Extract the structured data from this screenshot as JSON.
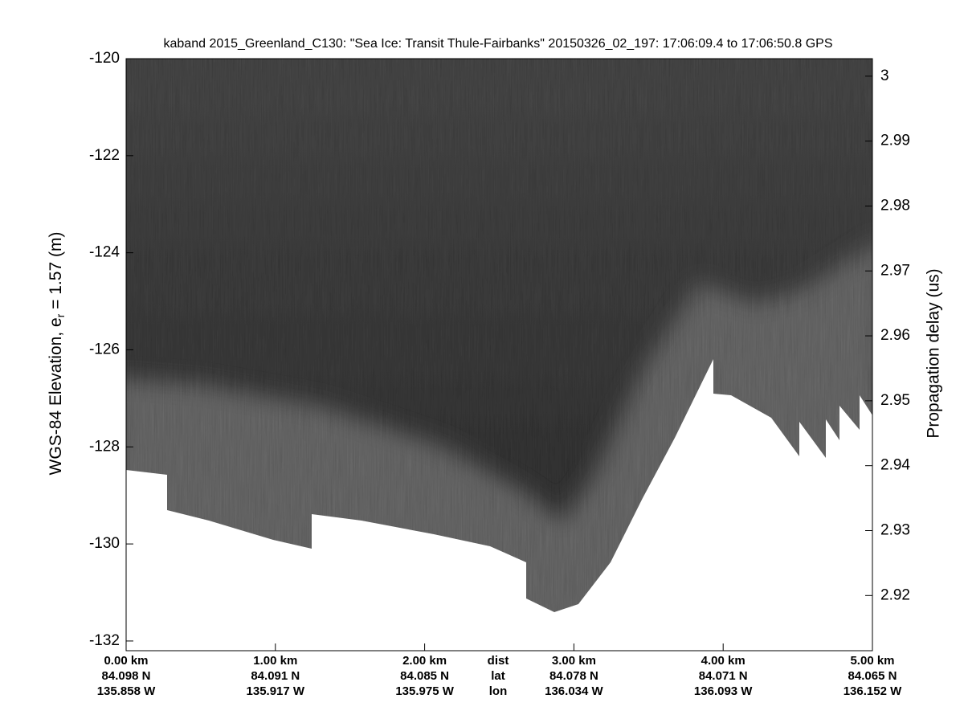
{
  "chart_data": {
    "type": "echogram",
    "title": "kaband 2015_Greenland_C130: \"Sea Ice: Transit Thule-Fairbanks\"  20150326_02_197: 17:06:09.4 to 17:06:50.8 GPS",
    "ylabel": [
      "WGS-84 Elevation, e",
      "r",
      " = 1.57 (m)"
    ],
    "y2label": "Propagation delay (us)",
    "xlim": [
      0,
      5
    ],
    "xticks": [
      {
        "value": 0,
        "label": "0.00 km"
      },
      {
        "value": 1,
        "label": "1.00 km"
      },
      {
        "value": 2,
        "label": "2.00 km"
      },
      {
        "value": 3,
        "label": "3.00 km"
      },
      {
        "value": 4,
        "label": "4.00 km"
      },
      {
        "value": 5,
        "label": "5.00 km"
      }
    ],
    "xtick_lat": [
      "84.098 N",
      "84.091 N",
      "84.085 N",
      "84.078 N",
      "84.071 N",
      "84.065 N"
    ],
    "xtick_lon": [
      "135.858 W",
      "135.917 W",
      "135.975 W",
      "136.034 W",
      "136.093 W",
      "136.152 W"
    ],
    "xrow_labels": [
      "dist",
      "lat",
      "lon"
    ],
    "ylim": [
      -132.2,
      -120
    ],
    "yticks": [
      -120,
      -122,
      -124,
      -126,
      -128,
      -130,
      -132
    ],
    "y2lim": [
      2.9115,
      3.0027
    ],
    "y2ticks": [
      2.92,
      2.93,
      2.94,
      2.95,
      2.96,
      2.97,
      2.98,
      2.99,
      3
    ]
  }
}
